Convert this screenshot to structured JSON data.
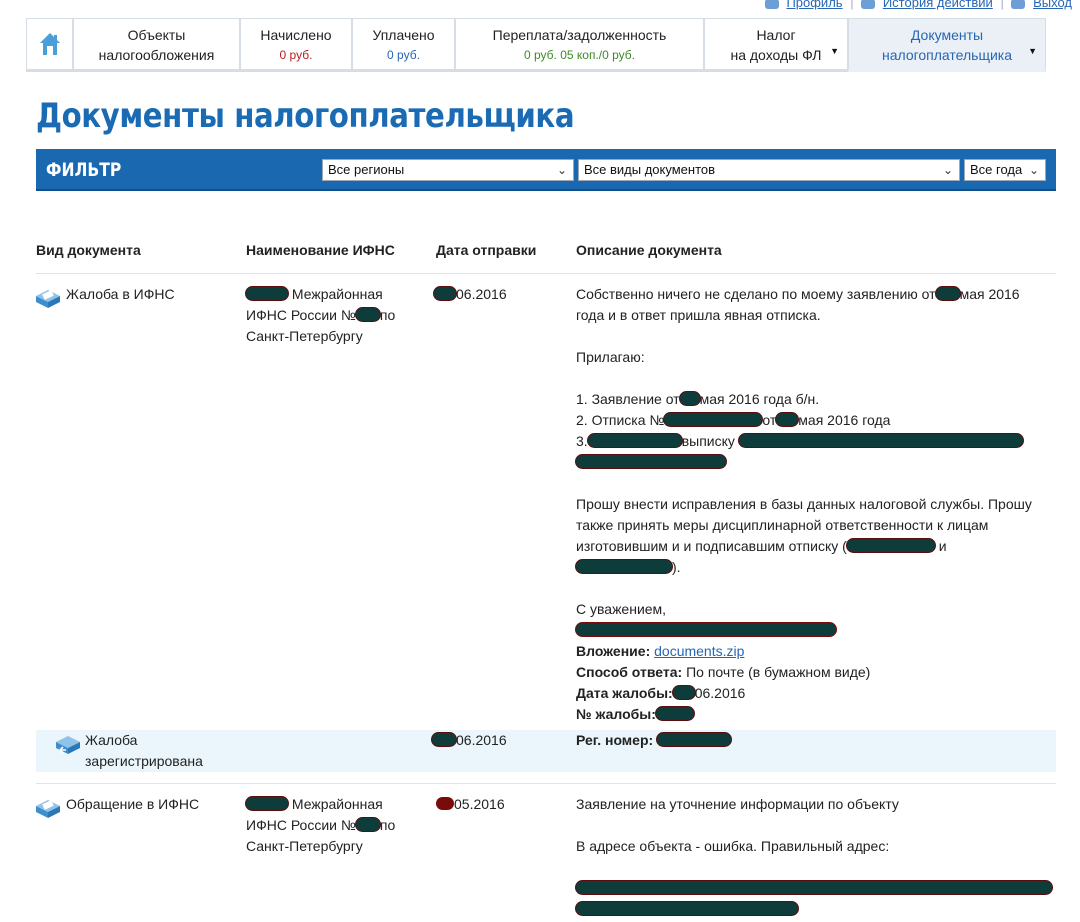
{
  "top_links": {
    "profile": "Профиль",
    "history": "История действий",
    "logout": "Выход"
  },
  "tabs": [
    {
      "title": "Объекты",
      "subtitle": "налогообложения"
    },
    {
      "title": "Начислено",
      "subtitle": "0 руб."
    },
    {
      "title": "Уплачено",
      "subtitle": "0 руб."
    },
    {
      "title": "Переплата/задолженность",
      "subtitle": "0 руб. 05 коп./0 руб."
    },
    {
      "title": "Налог",
      "subtitle": "на доходы ФЛ"
    },
    {
      "title": "Документы",
      "subtitle": "налогоплательщика"
    }
  ],
  "page_title": "Документы налогоплательщика",
  "filter": {
    "label": "ФИЛЬТР",
    "region": "Все регионы",
    "doc_type": "Все виды документов",
    "year": "Все года"
  },
  "table_headers": {
    "type": "Вид документа",
    "ifns": "Наименование ИФНС",
    "date": "Дата отправки",
    "description": "Описание документа"
  },
  "row1": {
    "type": "Жалоба в ИФНС",
    "ifns_1": "Межрайонная",
    "ifns_2": "ИФНС России №",
    "ifns_2b": "по",
    "ifns_3": "Санкт-Петербургу",
    "date": "06.2016",
    "desc_1a": "Собственно ничего не сделано по моему заявлению от",
    "desc_1b": "мая 2016",
    "desc_1c": "года и в ответ пришла явная отписка.",
    "attach_intro": "Прилагаю:",
    "item1a": "1. Заявление от",
    "item1b": "мая 2016 года б/н.",
    "item2a": "2. Отписка №",
    "item2b": "от",
    "item2c": "мая 2016 года",
    "item3a": "3.",
    "item3b": "выписку",
    "request_1": "Прошу внести исправления в базы данных налоговой службы. Прошу",
    "request_2": "также принять меры дисциплинарной ответственности к лицам",
    "request_3a": "изготовившим и и подписавшим отписку (",
    "request_3b": "и",
    "request_4": ").",
    "regards": "С уважением,",
    "attachment_label": "Вложение:",
    "attachment_file": "documents.zip",
    "reply_label": "Способ ответа:",
    "reply_value": "По почте (в бумажном виде)",
    "complaint_date_label": "Дата жалобы:",
    "complaint_date_value": "06.2016",
    "complaint_no_label": "№ жалобы:"
  },
  "row1_sub": {
    "type_1": "Жалоба",
    "type_2": "зарегистрирована",
    "date": "06.2016",
    "reg_label": "Рег. номер:"
  },
  "row2": {
    "type": "Обращение в ИФНС",
    "ifns_1": "Межрайонная",
    "ifns_2": "ИФНС России №",
    "ifns_2b": "по",
    "ifns_3": "Санкт-Петербургу",
    "date": "05.2016",
    "desc_1": "Заявление на уточнение информации по объекту",
    "desc_2": "В адресе объекта - ошибка. Правильный адрес:"
  }
}
